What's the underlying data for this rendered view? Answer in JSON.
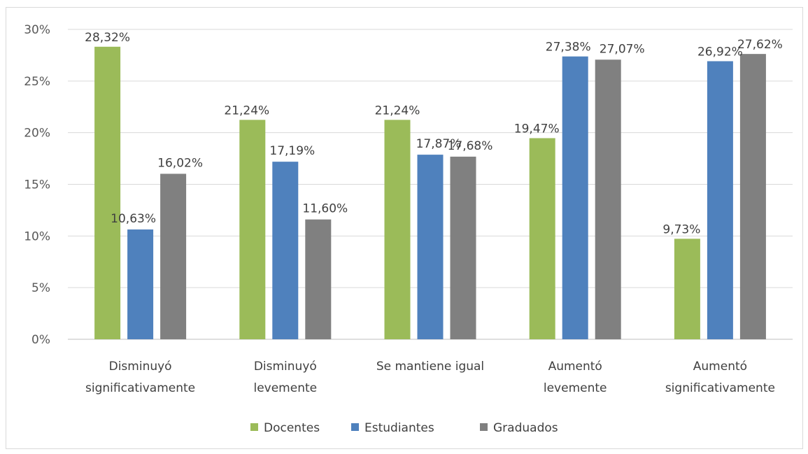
{
  "chart_data": {
    "type": "bar",
    "categories": [
      [
        "Disminuyó",
        "significativamente"
      ],
      [
        "Disminuyó",
        "levemente"
      ],
      [
        "Se mantiene igual"
      ],
      [
        "Aumentó",
        "levemente"
      ],
      [
        "Aumentó",
        "significativamente"
      ]
    ],
    "series": [
      {
        "name": "Docentes",
        "color": "#9bbb59",
        "values": [
          28.32,
          21.24,
          21.24,
          19.47,
          9.73
        ],
        "labels": [
          "28,32%",
          "21,24%",
          "21,24%",
          "19,47%",
          "9,73%"
        ]
      },
      {
        "name": "Estudiantes",
        "color": "#4f81bd",
        "values": [
          10.63,
          17.19,
          17.87,
          27.38,
          26.92
        ],
        "labels": [
          "10,63%",
          "17,19%",
          "17,87%",
          "27,38%",
          "26,92%"
        ]
      },
      {
        "name": "Graduados",
        "color": "#808080",
        "values": [
          16.02,
          11.6,
          17.68,
          27.07,
          27.62
        ],
        "labels": [
          "16,02%",
          "11,60%",
          "17,68%",
          "27,07%",
          "27,62%"
        ]
      }
    ],
    "yticks": [
      "0%",
      "5%",
      "10%",
      "15%",
      "20%",
      "25%",
      "30%"
    ],
    "ylim": [
      0,
      30
    ],
    "grid": true,
    "legend": "bottom"
  }
}
